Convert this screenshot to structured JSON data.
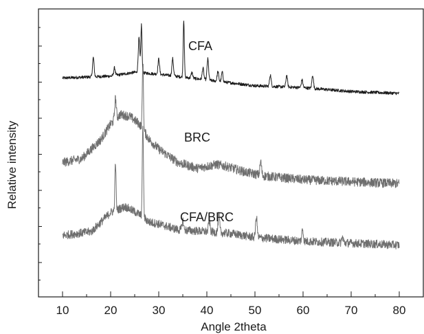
{
  "chart_data": {
    "type": "line",
    "title": "",
    "xlabel": "Angle 2theta",
    "ylabel": "Relative intensity",
    "xlim": [
      5,
      85
    ],
    "xticks": [
      10,
      20,
      30,
      40,
      50,
      60,
      70,
      80
    ],
    "y_tick_labels_shown": false,
    "grid": false,
    "legend": "none (series labeled inline)",
    "colors": {
      "CFA": "#1c1c1c",
      "BRC": "#6e6e6e",
      "CFA/BRC": "#6e6e6e"
    },
    "series": [
      {
        "name": "CFA",
        "baseline_points": [
          [
            10,
            5.3
          ],
          [
            20,
            5.35
          ],
          [
            25,
            5.45
          ],
          [
            30,
            5.4
          ],
          [
            40,
            5.25
          ],
          [
            50,
            5.1
          ],
          [
            60,
            5.05
          ],
          [
            70,
            4.95
          ],
          [
            80,
            4.9
          ]
        ],
        "peaks": [
          [
            16.4,
            0.5
          ],
          [
            20.8,
            0.2
          ],
          [
            25.9,
            0.9
          ],
          [
            26.4,
            1.25
          ],
          [
            30.0,
            0.4
          ],
          [
            32.9,
            0.45
          ],
          [
            35.2,
            1.5
          ],
          [
            36.9,
            0.15
          ],
          [
            39.2,
            0.3
          ],
          [
            40.2,
            0.55
          ],
          [
            42.3,
            0.25
          ],
          [
            43.2,
            0.25
          ],
          [
            53.2,
            0.3
          ],
          [
            56.6,
            0.3
          ],
          [
            59.8,
            0.2
          ],
          [
            62.0,
            0.35
          ]
        ]
      },
      {
        "name": "BRC",
        "baseline_points": [
          [
            10,
            3.1
          ],
          [
            14,
            3.2
          ],
          [
            18,
            3.7
          ],
          [
            20,
            4.1
          ],
          [
            22,
            4.35
          ],
          [
            24,
            4.3
          ],
          [
            26,
            4.1
          ],
          [
            28,
            3.7
          ],
          [
            30,
            3.45
          ],
          [
            34,
            3.1
          ],
          [
            38,
            2.95
          ],
          [
            42,
            3.05
          ],
          [
            44,
            3.0
          ],
          [
            48,
            2.85
          ],
          [
            52,
            2.75
          ],
          [
            60,
            2.65
          ],
          [
            70,
            2.6
          ],
          [
            80,
            2.55
          ]
        ],
        "peaks": [
          [
            21.0,
            0.55
          ],
          [
            26.7,
            1.75
          ],
          [
            51.2,
            0.35
          ]
        ]
      },
      {
        "name": "CFA/BRC",
        "baseline_points": [
          [
            10,
            1.2
          ],
          [
            16,
            1.3
          ],
          [
            20,
            1.8
          ],
          [
            23,
            1.95
          ],
          [
            26,
            1.75
          ],
          [
            28,
            1.55
          ],
          [
            30,
            1.5
          ],
          [
            34,
            1.35
          ],
          [
            40,
            1.3
          ],
          [
            45,
            1.25
          ],
          [
            50,
            1.15
          ],
          [
            60,
            1.05
          ],
          [
            70,
            1.0
          ],
          [
            80,
            0.95
          ]
        ],
        "peaks": [
          [
            21.0,
            1.25
          ],
          [
            26.7,
            2.45
          ],
          [
            35.0,
            0.25
          ],
          [
            40.5,
            0.3
          ],
          [
            42.5,
            0.45
          ],
          [
            50.3,
            0.55
          ],
          [
            59.9,
            0.3
          ],
          [
            68.2,
            0.15
          ]
        ]
      }
    ],
    "annotations": [
      "CFA",
      "BRC",
      "CFA/BRC"
    ]
  }
}
